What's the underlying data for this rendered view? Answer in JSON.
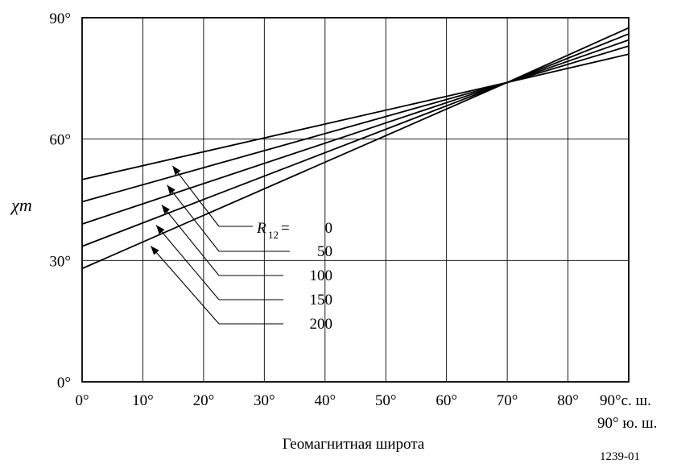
{
  "chart_data": {
    "type": "line",
    "ylabel": "χm",
    "xlabel": "Геомагнитная широта",
    "x_ticks": [
      "0°",
      "10°",
      "20°",
      "30°",
      "40°",
      "50°",
      "60°",
      "70°",
      "80°",
      "90°с. ш."
    ],
    "x_end_label_south": "90° ю. ш.",
    "y_ticks": [
      "0°",
      "30°",
      "60°",
      "90°"
    ],
    "xlim": [
      0,
      90
    ],
    "ylim": [
      0,
      90
    ],
    "grid": true,
    "legend_title_var": "R",
    "legend_title_sub": "12",
    "legend_title_eq": " =",
    "series": [
      {
        "name": "0",
        "x": [
          0,
          70,
          90
        ],
        "y": [
          50,
          74,
          81
        ]
      },
      {
        "name": "50",
        "x": [
          0,
          70,
          90
        ],
        "y": [
          44.5,
          74,
          83
        ]
      },
      {
        "name": "100",
        "x": [
          0,
          70,
          90
        ],
        "y": [
          39,
          74,
          84.5
        ]
      },
      {
        "name": "150",
        "x": [
          0,
          70,
          90
        ],
        "y": [
          33.5,
          74,
          86
        ]
      },
      {
        "name": "200",
        "x": [
          0,
          70,
          90
        ],
        "y": [
          28,
          74,
          87.5
        ]
      }
    ],
    "figure_id": "1239-01"
  }
}
